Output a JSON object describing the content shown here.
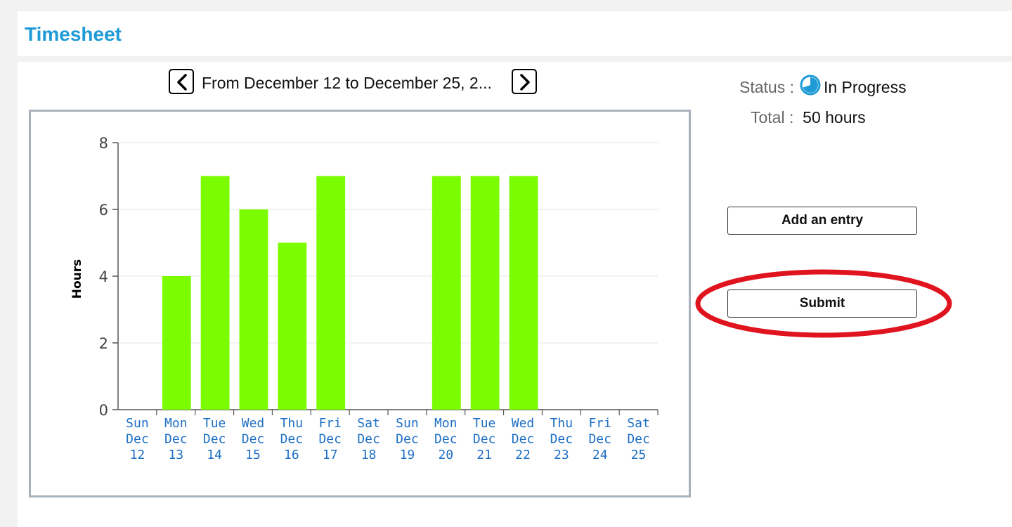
{
  "header": {
    "title": "Timesheet"
  },
  "period": {
    "range_label": "From December 12 to December 25, 2...",
    "prev_label": "Previous period",
    "next_label": "Next period"
  },
  "summary": {
    "status_label": "Status :",
    "status_value": "In Progress",
    "status_icon": "clock-progress-icon",
    "total_label": "Total :",
    "total_value": "50 hours"
  },
  "actions": {
    "add_entry_label": "Add an entry",
    "submit_label": "Submit"
  },
  "colors": {
    "accent": "#1e9ad6",
    "bar": "#7cfc00",
    "tick_label": "#1e6fc4",
    "highlight": "#e0141e"
  },
  "chart_data": {
    "type": "bar",
    "ylabel": "Hours",
    "xlabel": "",
    "ylim": [
      0,
      8
    ],
    "yticks": [
      0,
      2,
      4,
      6,
      8
    ],
    "grid": true,
    "categories": [
      [
        "Sun",
        "Dec",
        "12"
      ],
      [
        "Mon",
        "Dec",
        "13"
      ],
      [
        "Tue",
        "Dec",
        "14"
      ],
      [
        "Wed",
        "Dec",
        "15"
      ],
      [
        "Thu",
        "Dec",
        "16"
      ],
      [
        "Fri",
        "Dec",
        "17"
      ],
      [
        "Sat",
        "Dec",
        "18"
      ],
      [
        "Sun",
        "Dec",
        "19"
      ],
      [
        "Mon",
        "Dec",
        "20"
      ],
      [
        "Tue",
        "Dec",
        "21"
      ],
      [
        "Wed",
        "Dec",
        "22"
      ],
      [
        "Thu",
        "Dec",
        "23"
      ],
      [
        "Fri",
        "Dec",
        "24"
      ],
      [
        "Sat",
        "Dec",
        "25"
      ]
    ],
    "values": [
      0,
      4,
      7,
      6,
      5,
      7,
      0,
      0,
      7,
      7,
      7,
      0,
      0,
      0
    ]
  }
}
